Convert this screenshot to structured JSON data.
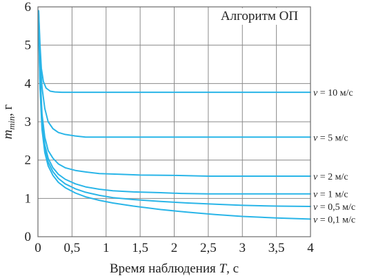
{
  "chart_data": {
    "type": "line",
    "title": "Алгоритм ОП",
    "xlabel_prefix": "Время наблюдения ",
    "xlabel_var": "T",
    "xlabel_suffix": ", с",
    "ylabel_var": "m",
    "ylabel_sub": "min",
    "ylabel_suffix": ", г",
    "xlim": [
      0,
      4
    ],
    "ylim": [
      0,
      6
    ],
    "xticks": [
      "0",
      "0,5",
      "1",
      "1,5",
      "2",
      "2,5",
      "3",
      "3,5",
      "4"
    ],
    "xtick_values": [
      0,
      0.5,
      1,
      1.5,
      2,
      2.5,
      3,
      3.5,
      4
    ],
    "yticks": [
      "0",
      "1",
      "2",
      "3",
      "4",
      "5",
      "6"
    ],
    "ytick_values": [
      0,
      1,
      2,
      3,
      4,
      5,
      6
    ],
    "grid": true,
    "line_color": "#29b5e8",
    "series": [
      {
        "name": "v = 10 м/с",
        "x": [
          0.01,
          0.03,
          0.05,
          0.08,
          0.12,
          0.18,
          0.25,
          0.35,
          0.5,
          1,
          2,
          3,
          4
        ],
        "y": [
          5.9,
          5.0,
          4.4,
          4.05,
          3.88,
          3.8,
          3.78,
          3.77,
          3.77,
          3.77,
          3.77,
          3.77,
          3.77
        ]
      },
      {
        "name": "v = 5 м/с",
        "x": [
          0.01,
          0.03,
          0.06,
          0.1,
          0.15,
          0.22,
          0.3,
          0.4,
          0.55,
          0.7,
          1,
          2,
          3,
          4
        ],
        "y": [
          5.9,
          4.7,
          3.9,
          3.35,
          3.0,
          2.82,
          2.72,
          2.67,
          2.63,
          2.6,
          2.6,
          2.6,
          2.6,
          2.6
        ]
      },
      {
        "name": "v = 2 м/с",
        "x": [
          0.01,
          0.03,
          0.06,
          0.1,
          0.15,
          0.22,
          0.3,
          0.4,
          0.55,
          0.7,
          0.9,
          1.2,
          1.5,
          2,
          2.5,
          3,
          4
        ],
        "y": [
          5.8,
          4.3,
          3.2,
          2.6,
          2.25,
          2.05,
          1.9,
          1.8,
          1.73,
          1.69,
          1.65,
          1.63,
          1.61,
          1.6,
          1.58,
          1.58,
          1.58
        ]
      },
      {
        "name": "v = 1 м/с",
        "x": [
          0.01,
          0.03,
          0.06,
          0.1,
          0.15,
          0.22,
          0.3,
          0.4,
          0.55,
          0.7,
          0.9,
          1.1,
          1.4,
          1.8,
          2.1,
          2.5,
          3,
          4
        ],
        "y": [
          5.7,
          4.1,
          3.0,
          2.4,
          2.05,
          1.8,
          1.63,
          1.5,
          1.38,
          1.3,
          1.24,
          1.2,
          1.17,
          1.15,
          1.13,
          1.12,
          1.12,
          1.12
        ]
      },
      {
        "name": "v = 0,5 м/с",
        "x": [
          0.01,
          0.03,
          0.06,
          0.1,
          0.15,
          0.22,
          0.3,
          0.4,
          0.55,
          0.7,
          0.9,
          1.1,
          1.4,
          1.8,
          2.2,
          2.6,
          3,
          3.5,
          4
        ],
        "y": [
          5.6,
          4.0,
          2.9,
          2.3,
          1.95,
          1.7,
          1.52,
          1.38,
          1.25,
          1.16,
          1.08,
          1.02,
          0.97,
          0.92,
          0.88,
          0.85,
          0.82,
          0.8,
          0.79
        ]
      },
      {
        "name": "v = 0,1 м/с",
        "x": [
          0.01,
          0.03,
          0.06,
          0.1,
          0.15,
          0.22,
          0.3,
          0.4,
          0.55,
          0.7,
          0.9,
          1.1,
          1.4,
          1.8,
          2.2,
          2.6,
          3,
          3.5,
          4
        ],
        "y": [
          5.5,
          3.9,
          2.8,
          2.2,
          1.85,
          1.6,
          1.42,
          1.28,
          1.14,
          1.04,
          0.95,
          0.88,
          0.8,
          0.71,
          0.64,
          0.58,
          0.53,
          0.49,
          0.46
        ]
      }
    ]
  }
}
